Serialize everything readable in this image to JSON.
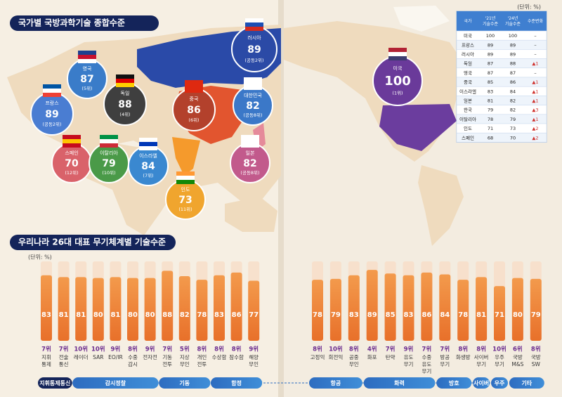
{
  "map_section": {
    "title": "국가별 국방과학기술 종합수준",
    "countries": [
      {
        "name": "러시아",
        "score": 89,
        "rank": "(공동2위)"
      },
      {
        "name": "영국",
        "score": 87,
        "rank": "(5위)"
      },
      {
        "name": "독일",
        "score": 88,
        "rank": "(4위)"
      },
      {
        "name": "프랑스",
        "score": 89,
        "rank": "(공동2위)"
      },
      {
        "name": "중국",
        "score": 86,
        "rank": "(6위)"
      },
      {
        "name": "대한민국",
        "score": 82,
        "rank": "(공동8위)"
      },
      {
        "name": "미국",
        "score": 100,
        "rank": "(1위)"
      },
      {
        "name": "스페인",
        "score": 70,
        "rank": "(12위)"
      },
      {
        "name": "이탈리아",
        "score": 79,
        "rank": "(10위)"
      },
      {
        "name": "이스라엘",
        "score": 84,
        "rank": "(7위)"
      },
      {
        "name": "일본",
        "score": 82,
        "rank": "(공동8위)"
      },
      {
        "name": "인도",
        "score": 73,
        "rank": "(11위)"
      }
    ]
  },
  "table": {
    "unit": "(단위: %)",
    "headers": [
      "국가",
      "'21년\n기술수준",
      "'24년\n기술수준",
      "수준변화"
    ],
    "rows": [
      [
        "미국",
        100,
        100,
        "–"
      ],
      [
        "프랑스",
        89,
        89,
        "–"
      ],
      [
        "러시아",
        89,
        89,
        "–"
      ],
      [
        "독일",
        87,
        88,
        "▲1"
      ],
      [
        "영국",
        87,
        87,
        "–"
      ],
      [
        "중국",
        85,
        86,
        "▲1"
      ],
      [
        "이스라엘",
        83,
        84,
        "▲1"
      ],
      [
        "일본",
        81,
        82,
        "▲1"
      ],
      [
        "한국",
        79,
        82,
        "▲3"
      ],
      [
        "이탈리아",
        78,
        79,
        "▲1"
      ],
      [
        "인도",
        71,
        73,
        "▲2"
      ],
      [
        "스페인",
        68,
        70,
        "▲2"
      ]
    ]
  },
  "bar_section": {
    "title": "우리나라 26대 대표 무기체계별 기술수준",
    "unit": "(단위: %)",
    "groups": [
      {
        "name": "지휘통제통신",
        "items": [
          {
            "rank": "7위",
            "name": "지휘\n통제",
            "value": 83
          },
          {
            "rank": "7위",
            "name": "전술\n통신",
            "value": 81
          }
        ]
      },
      {
        "name": "감시정찰",
        "items": [
          {
            "rank": "10위",
            "name": "레이더",
            "value": 81
          },
          {
            "rank": "10위",
            "name": "SAR",
            "value": 80
          },
          {
            "rank": "9위",
            "name": "EO/IR",
            "value": 81
          },
          {
            "rank": "8위",
            "name": "수중\n감시",
            "value": 80
          },
          {
            "rank": "9위",
            "name": "전자전",
            "value": 80
          }
        ]
      },
      {
        "name": "기동",
        "items": [
          {
            "rank": "7위",
            "name": "기동\n전투",
            "value": 88
          },
          {
            "rank": "5위",
            "name": "지상\n무인",
            "value": 82
          },
          {
            "rank": "8위",
            "name": "개인\n전투",
            "value": 78
          }
        ]
      },
      {
        "name": "함정",
        "items": [
          {
            "rank": "8위",
            "name": "수상함",
            "value": 83
          },
          {
            "rank": "8위",
            "name": "잠수함",
            "value": 86
          },
          {
            "rank": "9위",
            "name": "해양\n무인",
            "value": 77
          }
        ]
      },
      {
        "name": "항공",
        "items": [
          {
            "rank": "8위",
            "name": "고정익",
            "value": 78
          },
          {
            "rank": "10위",
            "name": "회전익",
            "value": 79
          },
          {
            "rank": "8위",
            "name": "공중\n무인",
            "value": 83
          }
        ]
      },
      {
        "name": "화력",
        "items": [
          {
            "rank": "4위",
            "name": "화포",
            "value": 89
          },
          {
            "rank": "7위",
            "name": "탄약",
            "value": 85
          },
          {
            "rank": "9위",
            "name": "유도\n무기",
            "value": 83
          },
          {
            "rank": "7위",
            "name": "수중\n유도\n무기",
            "value": 86
          }
        ]
      },
      {
        "name": "방호",
        "items": [
          {
            "rank": "7위",
            "name": "방공\n무기",
            "value": 84
          },
          {
            "rank": "8위",
            "name": "화생방",
            "value": 78
          }
        ]
      },
      {
        "name": "사이버",
        "items": [
          {
            "rank": "8위",
            "name": "사이버\n무기",
            "value": 81
          }
        ]
      },
      {
        "name": "우주",
        "items": [
          {
            "rank": "10위",
            "name": "우주\n무기",
            "value": 71
          }
        ]
      },
      {
        "name": "기타",
        "items": [
          {
            "rank": "6위",
            "name": "국방\nM&S",
            "value": 80
          },
          {
            "rank": "8위",
            "name": "국방\nSW",
            "value": 79
          }
        ]
      }
    ]
  }
}
